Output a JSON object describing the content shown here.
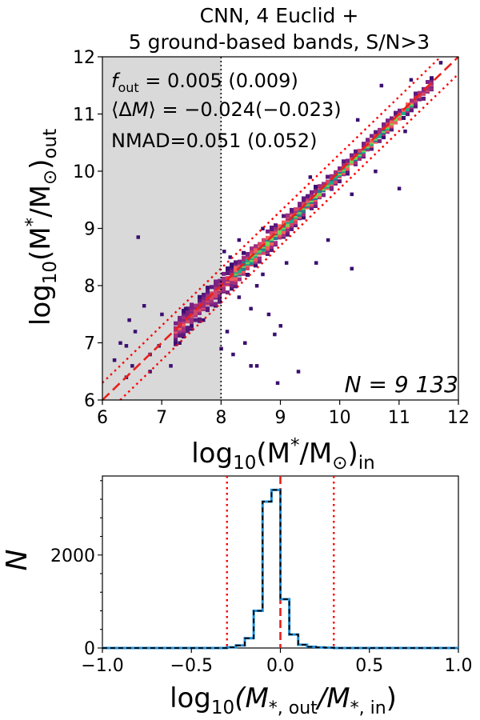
{
  "chart_data": [
    {
      "type": "heatmap",
      "title_line1": "CNN, 4 Euclid +",
      "title_line2": "5 ground-based bands, S/N>3",
      "xlabel": {
        "pre": "log",
        "sub": "10",
        "mid": "(M",
        "sub2": "*",
        "tail": "/M",
        "sun": "⊙",
        "end": ")",
        "final": "in"
      },
      "ylabel": {
        "pre": "log",
        "sub": "10",
        "mid": "(M",
        "sub2": "*",
        "tail": "/M",
        "sun": "⊙",
        "end": ")",
        "final": "out"
      },
      "xlim": [
        6,
        12
      ],
      "ylim": [
        6,
        12
      ],
      "xticks": [
        "6",
        "7",
        "8",
        "9",
        "10",
        "11",
        "12"
      ],
      "yticks": [
        "6",
        "7",
        "8",
        "9",
        "10",
        "11",
        "12"
      ],
      "shaded_region": {
        "x": [
          6,
          8
        ]
      },
      "vline_x": 8,
      "one_to_one": {
        "x": [
          6,
          12
        ],
        "y": [
          6,
          12
        ]
      },
      "outlier_bounds": [
        -0.3,
        0.3
      ],
      "stats": {
        "f_out": "0.005 (0.009)",
        "mean_dm": "−0.024(−0.023)",
        "nmad_label": "NMAD=0.051 (0.052)"
      },
      "n_label": "N = 9 133",
      "ridge_points": [
        [
          7.3,
          7.3
        ],
        [
          7.6,
          7.6
        ],
        [
          7.9,
          7.9
        ],
        [
          8.2,
          8.2
        ],
        [
          8.5,
          8.5
        ],
        [
          8.8,
          8.8
        ],
        [
          9.1,
          9.1
        ],
        [
          9.4,
          9.4
        ],
        [
          9.7,
          9.7
        ],
        [
          10.0,
          10.0
        ],
        [
          10.3,
          10.3
        ],
        [
          10.6,
          10.6
        ],
        [
          10.9,
          10.9
        ],
        [
          11.2,
          11.2
        ],
        [
          11.4,
          11.4
        ]
      ],
      "outliers": [
        [
          6.3,
          7.0
        ],
        [
          6.45,
          7.4
        ],
        [
          6.5,
          6.6
        ],
        [
          6.55,
          7.2
        ],
        [
          6.2,
          6.7
        ],
        [
          6.4,
          6.95
        ],
        [
          6.7,
          7.65
        ],
        [
          6.8,
          6.8
        ],
        [
          6.95,
          6.95
        ],
        [
          7.15,
          6.6
        ],
        [
          7.3,
          7.0
        ],
        [
          7.5,
          7.3
        ],
        [
          7.7,
          7.4
        ],
        [
          7.0,
          7.5
        ],
        [
          6.6,
          8.85
        ],
        [
          7.4,
          7.6
        ],
        [
          6.4,
          6.4
        ],
        [
          6.8,
          6.5
        ],
        [
          8.05,
          8.6
        ],
        [
          8.15,
          8.5
        ],
        [
          8.3,
          7.8
        ],
        [
          8.5,
          7.6
        ],
        [
          8.6,
          8.0
        ],
        [
          8.7,
          8.2
        ],
        [
          8.8,
          7.5
        ],
        [
          8.9,
          7.15
        ],
        [
          8.0,
          6.9
        ],
        [
          8.2,
          6.8
        ],
        [
          8.1,
          7.2
        ],
        [
          8.4,
          7.0
        ],
        [
          8.5,
          6.6
        ],
        [
          8.95,
          6.3
        ],
        [
          8.6,
          6.6
        ],
        [
          9.0,
          7.3
        ],
        [
          9.6,
          8.4
        ],
        [
          9.8,
          8.8
        ],
        [
          10.2,
          9.6
        ],
        [
          10.6,
          10.0
        ],
        [
          11.1,
          10.7
        ],
        [
          11.0,
          9.7
        ],
        [
          9.3,
          6.5
        ],
        [
          10.2,
          8.3
        ],
        [
          9.1,
          8.4
        ],
        [
          10.7,
          11.5
        ],
        [
          11.2,
          11.6
        ],
        [
          11.7,
          11.9
        ],
        [
          8.7,
          9.0
        ],
        [
          9.5,
          9.9
        ],
        [
          8.3,
          8.8
        ],
        [
          10.3,
          10.9
        ]
      ]
    },
    {
      "type": "bar",
      "histtype": "step",
      "xlabel": {
        "pre": "log",
        "sub": "10",
        "mid": "(M",
        "num": "*, out",
        "slash": "/M",
        "den": "*, in",
        "end": ")"
      },
      "ylabel": "N",
      "xlim": [
        -1.0,
        1.0
      ],
      "ylim": [
        0,
        3700
      ],
      "xticks": [
        "−1.0",
        "−0.5",
        "0.0",
        "0.5",
        "1.0"
      ],
      "yticks": [
        "0",
        "2000"
      ],
      "bin_width": 0.05,
      "bin_edges": [
        -0.3,
        -0.25,
        -0.2,
        -0.15,
        -0.1,
        -0.05,
        0.0,
        0.05,
        0.1,
        0.15,
        0.2,
        0.25,
        0.3
      ],
      "counts": [
        15,
        55,
        210,
        800,
        3150,
        3400,
        1050,
        290,
        70,
        25,
        12,
        6
      ],
      "vline_center": 0.0,
      "vlines_outlier": [
        -0.3,
        0.3
      ]
    }
  ]
}
